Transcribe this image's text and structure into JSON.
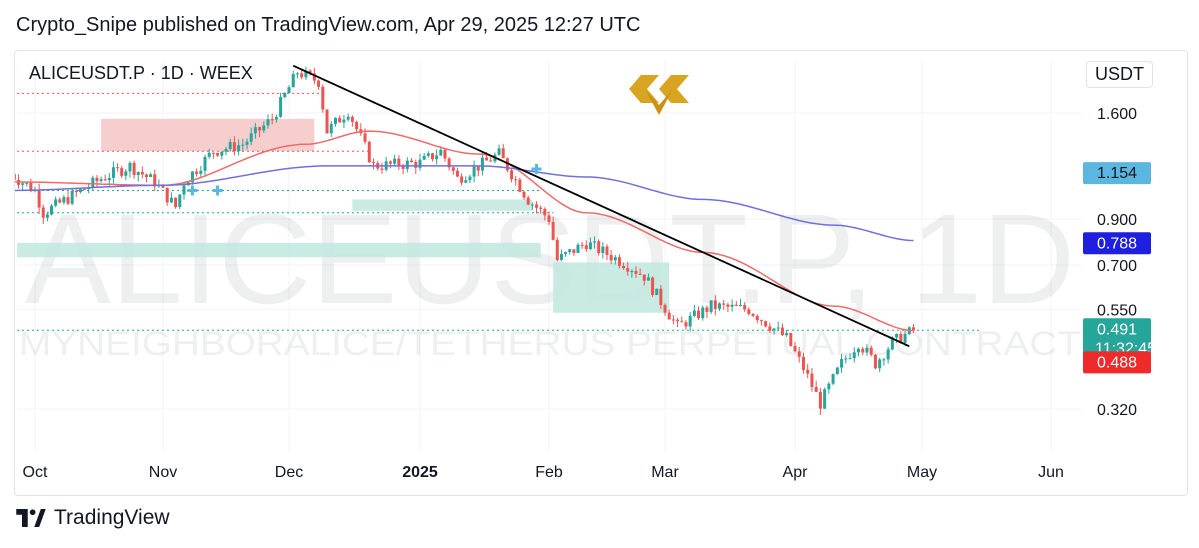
{
  "header": {
    "published": "Crypto_Snipe published on TradingView.com, Apr 29, 2025 12:27 UTC"
  },
  "symbol_line": "ALICEUSDT.P · 1D · WEEX",
  "currency": "USDT",
  "watermark": {
    "ticker": "ALICEUSDT.P, 1D",
    "description": "MYNEIGHBORALICE/TETHERUS PERPETUAL CONTRACT"
  },
  "footer": {
    "brand": "TradingView"
  },
  "colors": {
    "bull": "#26a69a",
    "bear": "#ef5350",
    "ma_red": "#f06a6a",
    "ma_blue": "#6f6fe0",
    "trendline": "#000000",
    "brand_gold": "#d9a521"
  },
  "chart_data": {
    "type": "candlestick",
    "x_axis": {
      "labels": [
        "Oct",
        "Nov",
        "Dec",
        "2025",
        "Feb",
        "Mar",
        "Apr",
        "May",
        "Jun"
      ]
    },
    "y_axis": {
      "ticks": [
        1.6,
        0.9,
        0.7,
        0.55,
        0.32
      ],
      "tick_labels": [
        "1.600",
        "0.900",
        "0.700",
        "0.550",
        "0.320"
      ],
      "scale": "log",
      "range": [
        0.25,
        2.1
      ]
    },
    "price_labels": [
      {
        "value": 1.154,
        "text": "1.154",
        "color": "#5bb6e0",
        "text_color": "#131722"
      },
      {
        "value": 0.788,
        "text": "0.788",
        "color": "#1f1fe0",
        "text_color": "#ffffff"
      },
      {
        "value": 0.491,
        "text": "0.491",
        "sub": "11:32:45",
        "color": "#26a69a",
        "text_color": "#ffffff"
      },
      {
        "value": 0.488,
        "text": "0.488",
        "color": "#ef2a2a",
        "text_color": "#ffffff"
      }
    ],
    "last_price": 0.491,
    "countdown": "11:32:45",
    "date_range": [
      "2024-09-25",
      "2025-04-29"
    ],
    "close_anchors": [
      [
        "2024-09-25",
        1.15
      ],
      [
        "2024-10-01",
        1.05
      ],
      [
        "2024-10-03",
        0.93
      ],
      [
        "2024-10-10",
        1.02
      ],
      [
        "2024-10-17",
        1.12
      ],
      [
        "2024-10-24",
        1.2
      ],
      [
        "2024-10-30",
        1.1
      ],
      [
        "2024-11-04",
        0.96
      ],
      [
        "2024-11-06",
        1.1
      ],
      [
        "2024-11-13",
        1.3
      ],
      [
        "2024-11-20",
        1.35
      ],
      [
        "2024-11-27",
        1.55
      ],
      [
        "2024-12-03",
        2.0
      ],
      [
        "2024-12-08",
        1.9
      ],
      [
        "2024-12-10",
        1.45
      ],
      [
        "2024-12-15",
        1.62
      ],
      [
        "2024-12-21",
        1.2
      ],
      [
        "2025-01-01",
        1.22
      ],
      [
        "2025-01-06",
        1.3
      ],
      [
        "2025-01-10",
        1.12
      ],
      [
        "2025-01-20",
        1.28
      ],
      [
        "2025-01-27",
        1.0
      ],
      [
        "2025-02-01",
        0.9
      ],
      [
        "2025-02-03",
        0.72
      ],
      [
        "2025-02-10",
        0.79
      ],
      [
        "2025-02-20",
        0.7
      ],
      [
        "2025-02-24",
        0.66
      ],
      [
        "2025-03-04",
        0.5
      ],
      [
        "2025-03-12",
        0.56
      ],
      [
        "2025-03-21",
        0.55
      ],
      [
        "2025-03-30",
        0.47
      ],
      [
        "2025-04-03",
        0.4
      ],
      [
        "2025-04-07",
        0.33
      ],
      [
        "2025-04-12",
        0.41
      ],
      [
        "2025-04-16",
        0.46
      ],
      [
        "2025-04-20",
        0.41
      ],
      [
        "2025-04-24",
        0.46
      ],
      [
        "2025-04-29",
        0.491
      ]
    ],
    "moving_averages": [
      {
        "color": "#f06a6a",
        "points": [
          [
            "2024-09-25",
            1.1
          ],
          [
            "2024-11-01",
            1.08
          ],
          [
            "2024-12-05",
            1.35
          ],
          [
            "2024-12-20",
            1.45
          ],
          [
            "2025-01-15",
            1.28
          ],
          [
            "2025-02-10",
            0.93
          ],
          [
            "2025-03-10",
            0.75
          ],
          [
            "2025-04-10",
            0.56
          ],
          [
            "2025-04-29",
            0.49
          ]
        ]
      },
      {
        "color": "#6f6fe0",
        "points": [
          [
            "2024-09-25",
            1.05
          ],
          [
            "2024-11-01",
            1.08
          ],
          [
            "2024-12-10",
            1.2
          ],
          [
            "2025-01-15",
            1.2
          ],
          [
            "2025-02-10",
            1.13
          ],
          [
            "2025-03-10",
            1.0
          ],
          [
            "2025-04-10",
            0.87
          ],
          [
            "2025-04-29",
            0.8
          ]
        ]
      }
    ],
    "trendline": [
      [
        "2024-12-02",
        2.07
      ],
      [
        "2025-04-28",
        0.45
      ]
    ],
    "zones": [
      {
        "color": "#f4c6c6",
        "from": "2024-10-17",
        "to": "2024-12-07",
        "low": 1.3,
        "high": 1.55
      },
      {
        "color": "#bfe8df",
        "from": "2024-09-25",
        "to": "2025-01-30",
        "low": 0.73,
        "high": 0.79
      },
      {
        "color": "#bfe8df",
        "from": "2024-12-16",
        "to": "2025-01-28",
        "low": 0.94,
        "high": 1.0
      },
      {
        "color": "#bfe8df",
        "from": "2025-02-02",
        "to": "2025-03-02",
        "low": 0.54,
        "high": 0.71
      }
    ],
    "level_lines": [
      {
        "value": 1.78,
        "color": "#ef5350",
        "from": "2024-09-25",
        "to": "2024-12-10"
      },
      {
        "value": 1.3,
        "color": "#ef5350",
        "from": "2024-09-25",
        "to": "2024-12-20"
      },
      {
        "value": 1.05,
        "color": "#26a69a",
        "from": "2024-09-25",
        "to": "2025-01-30"
      },
      {
        "value": 0.93,
        "color": "#26a69a",
        "from": "2024-09-25",
        "to": "2025-02-02"
      },
      {
        "value": 0.491,
        "color": "#26a69a",
        "from": "2024-09-25",
        "to": "2025-05-15"
      }
    ],
    "markers": [
      [
        "2024-11-08",
        1.05
      ],
      [
        "2024-11-14",
        1.05
      ],
      [
        "2025-01-29",
        1.18
      ]
    ]
  }
}
